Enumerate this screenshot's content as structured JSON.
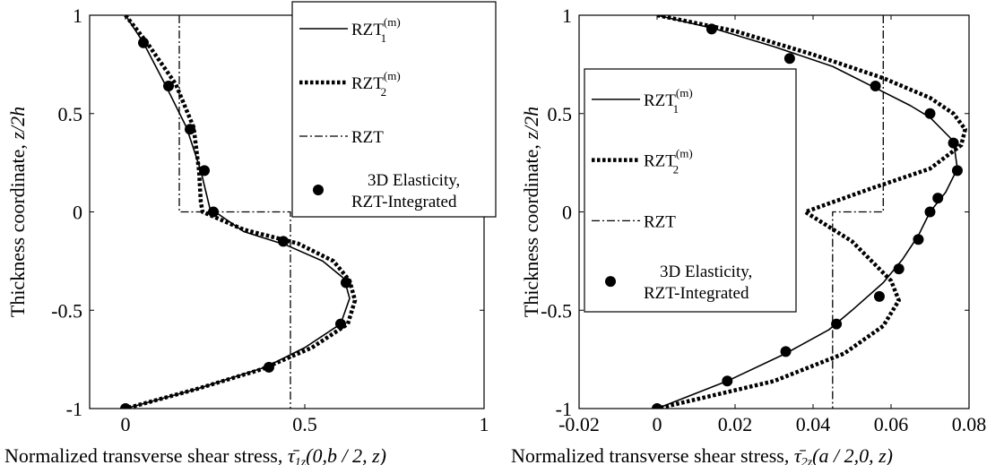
{
  "chart_data": [
    {
      "type": "line",
      "title": "",
      "xlabel": "Normalized transverse shear stress,",
      "xlabel_math": {
        "symbol": "τ̄",
        "sub": "1z",
        "args": "(0,b / 2, z)"
      },
      "ylabel": "Thickness coordinate,",
      "ylabel_math": "z/2h",
      "xlim": [
        -0.1,
        1.0
      ],
      "ylim": [
        -1,
        1
      ],
      "xticks": [
        {
          "v": 0,
          "label": "0"
        },
        {
          "v": 0.5,
          "label": "0.5"
        },
        {
          "v": 1,
          "label": "1"
        }
      ],
      "yticks": [
        {
          "v": 1,
          "label": "1"
        },
        {
          "v": 0.5,
          "label": "0.5"
        },
        {
          "v": 0,
          "label": "0"
        },
        {
          "v": -0.5,
          "label": "-0.5"
        },
        {
          "v": -1,
          "label": "-1"
        }
      ],
      "grid": false,
      "legend_position": "top-right",
      "series": [
        {
          "name_main": "RZT",
          "name_sub": "1",
          "name_sup": "(m)",
          "style": "solid",
          "points": [
            [
              0,
              1
            ],
            [
              0.05,
              0.86
            ],
            [
              0.11,
              0.65
            ],
            [
              0.17,
              0.43
            ],
            [
              0.21,
              0.21
            ],
            [
              0.235,
              0.02
            ],
            [
              0.25,
              0
            ],
            [
              0.33,
              -0.1
            ],
            [
              0.45,
              -0.17
            ],
            [
              0.55,
              -0.25
            ],
            [
              0.61,
              -0.34
            ],
            [
              0.625,
              -0.44
            ],
            [
              0.6,
              -0.57
            ],
            [
              0.5,
              -0.69
            ],
            [
              0.39,
              -0.79
            ],
            [
              0.2,
              -0.9
            ],
            [
              0,
              -1
            ]
          ]
        },
        {
          "name_main": "RZT",
          "name_sub": "2",
          "name_sup": "(m)",
          "style": "dotted",
          "points": [
            [
              0,
              1
            ],
            [
              0.06,
              0.86
            ],
            [
              0.14,
              0.65
            ],
            [
              0.19,
              0.43
            ],
            [
              0.205,
              0.21
            ],
            [
              0.21,
              0.05
            ],
            [
              0.215,
              0
            ],
            [
              0.33,
              -0.09
            ],
            [
              0.48,
              -0.16
            ],
            [
              0.58,
              -0.25
            ],
            [
              0.625,
              -0.35
            ],
            [
              0.64,
              -0.45
            ],
            [
              0.62,
              -0.57
            ],
            [
              0.52,
              -0.69
            ],
            [
              0.38,
              -0.8
            ],
            [
              0.2,
              -0.9
            ],
            [
              0,
              -1
            ]
          ]
        },
        {
          "name_main": "RZT",
          "style": "dashdot",
          "points": [
            [
              0.15,
              1
            ],
            [
              0.15,
              0
            ],
            [
              0.46,
              0
            ],
            [
              0.46,
              -1
            ]
          ]
        },
        {
          "name_line1": "3D Elasticity,",
          "name_line2": "RZT-Integrated",
          "style": "markers",
          "points": [
            [
              0.05,
              0.86
            ],
            [
              0.12,
              0.64
            ],
            [
              0.18,
              0.42
            ],
            [
              0.22,
              0.21
            ],
            [
              0.245,
              0
            ],
            [
              0.44,
              -0.15
            ],
            [
              0.615,
              -0.36
            ],
            [
              0.6,
              -0.57
            ],
            [
              0.4,
              -0.79
            ],
            [
              0,
              -1
            ]
          ]
        }
      ]
    },
    {
      "type": "line",
      "title": "",
      "xlabel": "Normalized transverse shear stress,",
      "xlabel_math": {
        "symbol": "τ̄",
        "sub": "2z",
        "args": "(a / 2,0, z)"
      },
      "ylabel": "Thickness coordinate,",
      "ylabel_math": "z/2h",
      "xlim": [
        -0.02,
        0.08
      ],
      "ylim": [
        -1,
        1
      ],
      "xticks": [
        {
          "v": -0.02,
          "label": "-0.02"
        },
        {
          "v": 0,
          "label": "0"
        },
        {
          "v": 0.02,
          "label": "0.02"
        },
        {
          "v": 0.04,
          "label": "0.04"
        },
        {
          "v": 0.06,
          "label": "0.06"
        },
        {
          "v": 0.08,
          "label": "0.08"
        }
      ],
      "yticks": [
        {
          "v": 1,
          "label": "1"
        },
        {
          "v": 0.5,
          "label": "0.5"
        },
        {
          "v": 0,
          "label": "0"
        },
        {
          "v": -0.5,
          "label": "-0.5"
        },
        {
          "v": -1,
          "label": "-1"
        }
      ],
      "grid": false,
      "legend_position": "center-left",
      "series": [
        {
          "name_main": "RZT",
          "name_sub": "1",
          "name_sup": "(m)",
          "style": "solid",
          "points": [
            [
              0,
              1
            ],
            [
              0.015,
              0.93
            ],
            [
              0.03,
              0.84
            ],
            [
              0.045,
              0.74
            ],
            [
              0.056,
              0.63
            ],
            [
              0.065,
              0.54
            ],
            [
              0.07,
              0.48
            ],
            [
              0.076,
              0.36
            ],
            [
              0.077,
              0.22
            ],
            [
              0.074,
              0.1
            ],
            [
              0.07,
              0
            ],
            [
              0.067,
              -0.12
            ],
            [
              0.063,
              -0.24
            ],
            [
              0.058,
              -0.36
            ],
            [
              0.05,
              -0.5
            ],
            [
              0.044,
              -0.6
            ],
            [
              0.033,
              -0.72
            ],
            [
              0.018,
              -0.86
            ],
            [
              0,
              -1
            ]
          ]
        },
        {
          "name_main": "RZT",
          "name_sub": "2",
          "name_sup": "(m)",
          "style": "dotted",
          "points": [
            [
              0,
              1
            ],
            [
              0.02,
              0.92
            ],
            [
              0.04,
              0.8
            ],
            [
              0.058,
              0.68
            ],
            [
              0.07,
              0.58
            ],
            [
              0.076,
              0.5
            ],
            [
              0.079,
              0.42
            ],
            [
              0.078,
              0.34
            ],
            [
              0.07,
              0.22
            ],
            [
              0.055,
              0.12
            ],
            [
              0.038,
              0
            ],
            [
              0.05,
              -0.15
            ],
            [
              0.06,
              -0.35
            ],
            [
              0.062,
              -0.45
            ],
            [
              0.058,
              -0.58
            ],
            [
              0.048,
              -0.72
            ],
            [
              0.03,
              -0.86
            ],
            [
              0,
              -1
            ]
          ]
        },
        {
          "name_main": "RZT",
          "style": "dashdot",
          "points": [
            [
              0.058,
              1
            ],
            [
              0.058,
              0
            ],
            [
              0.045,
              0
            ],
            [
              0.045,
              -1
            ]
          ]
        },
        {
          "name_line1": "3D Elasticity,",
          "name_line2": "RZT-Integrated",
          "style": "markers",
          "points": [
            [
              0.014,
              0.93
            ],
            [
              0.034,
              0.78
            ],
            [
              0.056,
              0.64
            ],
            [
              0.07,
              0.5
            ],
            [
              0.076,
              0.35
            ],
            [
              0.077,
              0.21
            ],
            [
              0.072,
              0.07
            ],
            [
              0.07,
              0
            ],
            [
              0.067,
              -0.14
            ],
            [
              0.062,
              -0.29
            ],
            [
              0.057,
              -0.43
            ],
            [
              0.046,
              -0.57
            ],
            [
              0.033,
              -0.71
            ],
            [
              0.018,
              -0.86
            ],
            [
              0,
              -1
            ]
          ]
        }
      ]
    }
  ]
}
